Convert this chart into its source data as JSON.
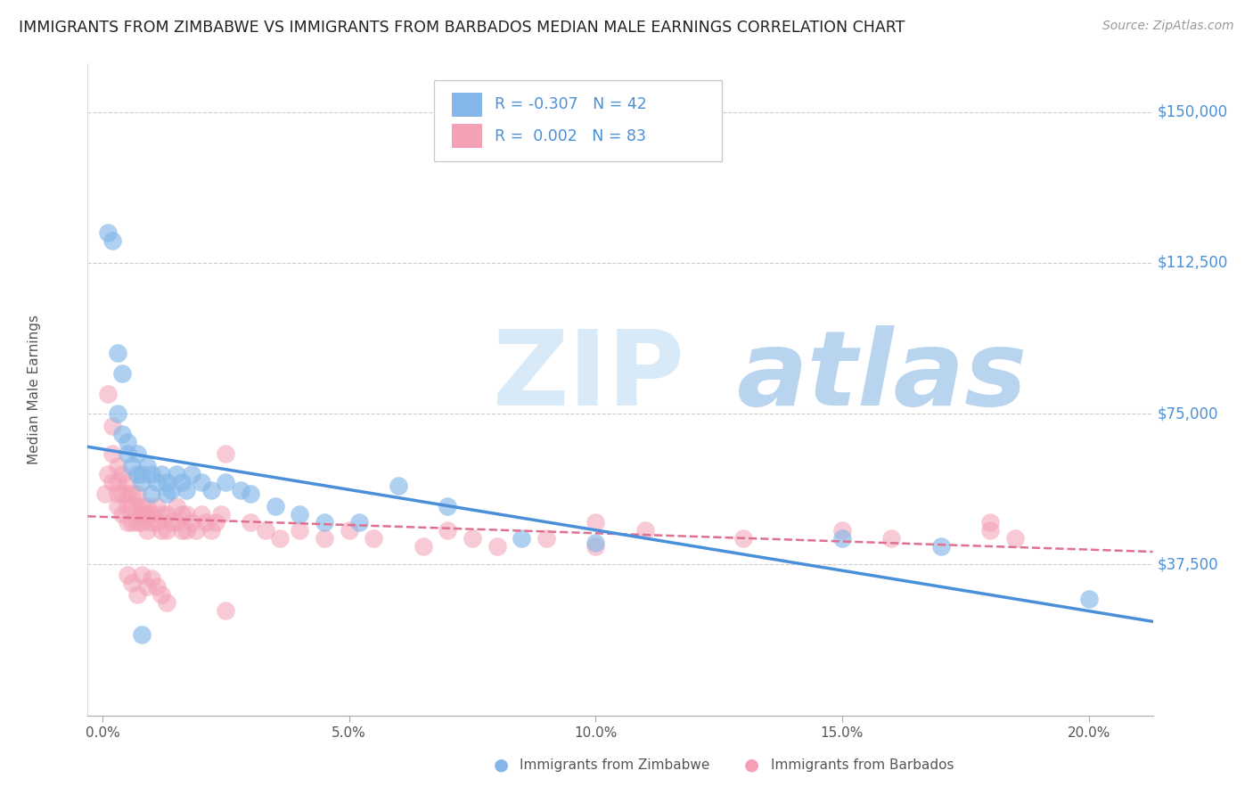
{
  "title": "IMMIGRANTS FROM ZIMBABWE VS IMMIGRANTS FROM BARBADOS MEDIAN MALE EARNINGS CORRELATION CHART",
  "source": "Source: ZipAtlas.com",
  "ylabel": "Median Male Earnings",
  "xlabel_ticks": [
    "0.0%",
    "5.0%",
    "10.0%",
    "15.0%",
    "20.0%"
  ],
  "xlabel_vals": [
    0.0,
    0.05,
    0.1,
    0.15,
    0.2
  ],
  "ytick_labels": [
    "$37,500",
    "$75,000",
    "$112,500",
    "$150,000"
  ],
  "ytick_vals": [
    37500,
    75000,
    112500,
    150000
  ],
  "ylim": [
    0,
    162000
  ],
  "xlim": [
    -0.003,
    0.213
  ],
  "legend1_R": "-0.307",
  "legend1_N": "42",
  "legend2_R": "0.002",
  "legend2_N": "83",
  "color_zimbabwe": "#85b8e8",
  "color_barbados": "#f4a0b5",
  "line_color_zimbabwe": "#4a90d9",
  "line_color_barbados": "#e07090",
  "watermark_zip": "ZIP",
  "watermark_atlas": "atlas",
  "watermark_color_zip": "#d8eaf7",
  "watermark_color_atlas": "#b8d4ef",
  "zimbabwe_x": [
    0.001,
    0.002,
    0.003,
    0.003,
    0.004,
    0.004,
    0.005,
    0.005,
    0.006,
    0.007,
    0.007,
    0.008,
    0.008,
    0.009,
    0.01,
    0.01,
    0.011,
    0.012,
    0.013,
    0.013,
    0.014,
    0.015,
    0.016,
    0.017,
    0.018,
    0.02,
    0.022,
    0.025,
    0.028,
    0.03,
    0.035,
    0.04,
    0.045,
    0.052,
    0.06,
    0.07,
    0.085,
    0.1,
    0.15,
    0.17,
    0.008,
    0.2
  ],
  "zimbabwe_y": [
    120000,
    118000,
    90000,
    75000,
    85000,
    70000,
    68000,
    65000,
    62000,
    65000,
    60000,
    60000,
    58000,
    62000,
    60000,
    55000,
    58000,
    60000,
    58000,
    55000,
    56000,
    60000,
    58000,
    56000,
    60000,
    58000,
    56000,
    58000,
    56000,
    55000,
    52000,
    50000,
    48000,
    48000,
    57000,
    52000,
    44000,
    43000,
    44000,
    42000,
    20000,
    29000
  ],
  "barbados_x": [
    0.0005,
    0.001,
    0.001,
    0.002,
    0.002,
    0.002,
    0.003,
    0.003,
    0.003,
    0.003,
    0.004,
    0.004,
    0.004,
    0.005,
    0.005,
    0.005,
    0.005,
    0.006,
    0.006,
    0.006,
    0.007,
    0.007,
    0.007,
    0.008,
    0.008,
    0.008,
    0.009,
    0.009,
    0.009,
    0.01,
    0.01,
    0.011,
    0.011,
    0.012,
    0.012,
    0.013,
    0.013,
    0.014,
    0.015,
    0.015,
    0.016,
    0.016,
    0.017,
    0.017,
    0.018,
    0.019,
    0.02,
    0.021,
    0.022,
    0.023,
    0.024,
    0.025,
    0.03,
    0.033,
    0.036,
    0.04,
    0.045,
    0.05,
    0.055,
    0.065,
    0.07,
    0.075,
    0.08,
    0.09,
    0.1,
    0.1,
    0.11,
    0.13,
    0.15,
    0.16,
    0.18,
    0.185,
    0.005,
    0.006,
    0.007,
    0.008,
    0.009,
    0.01,
    0.011,
    0.012,
    0.013,
    0.025,
    0.18
  ],
  "barbados_y": [
    55000,
    80000,
    60000,
    72000,
    65000,
    58000,
    62000,
    58000,
    55000,
    52000,
    60000,
    55000,
    50000,
    58000,
    55000,
    52000,
    48000,
    55000,
    52000,
    48000,
    55000,
    52000,
    48000,
    52000,
    50000,
    48000,
    52000,
    50000,
    46000,
    50000,
    48000,
    52000,
    48000,
    50000,
    46000,
    50000,
    46000,
    48000,
    52000,
    48000,
    50000,
    46000,
    50000,
    46000,
    48000,
    46000,
    50000,
    48000,
    46000,
    48000,
    50000,
    65000,
    48000,
    46000,
    44000,
    46000,
    44000,
    46000,
    44000,
    42000,
    46000,
    44000,
    42000,
    44000,
    48000,
    42000,
    46000,
    44000,
    46000,
    44000,
    46000,
    44000,
    35000,
    33000,
    30000,
    35000,
    32000,
    34000,
    32000,
    30000,
    28000,
    26000,
    48000
  ]
}
